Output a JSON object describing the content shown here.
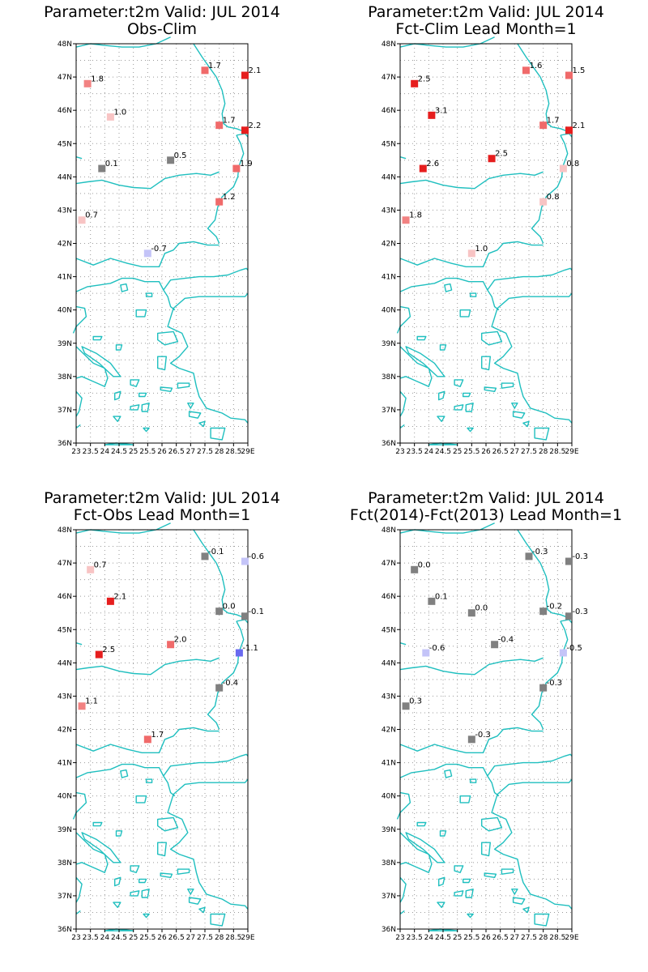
{
  "figure": {
    "panels": [
      {
        "id": "obs-clim",
        "title_line1": "Parameter:t2m Valid: JUL 2014",
        "title_line2": "Obs-Clim",
        "points": [
          {
            "lon": 23.4,
            "lat": 46.8,
            "value": "1.8",
            "color": "#f28282"
          },
          {
            "lon": 24.2,
            "lat": 45.8,
            "value": "1.0",
            "color": "#f8c4c4"
          },
          {
            "lon": 27.5,
            "lat": 47.2,
            "value": "1.7",
            "color": "#f06a6a"
          },
          {
            "lon": 28.9,
            "lat": 47.05,
            "value": "2.1",
            "color": "#e61e1e"
          },
          {
            "lon": 28.0,
            "lat": 45.55,
            "value": "1.7",
            "color": "#f06a6a"
          },
          {
            "lon": 28.9,
            "lat": 45.4,
            "value": "2.2",
            "color": "#e61e1e"
          },
          {
            "lon": 26.3,
            "lat": 44.5,
            "value": "0.5",
            "color": "#808080"
          },
          {
            "lon": 23.9,
            "lat": 44.25,
            "value": "0.1",
            "color": "#808080"
          },
          {
            "lon": 28.6,
            "lat": 44.25,
            "value": "1.9",
            "color": "#f06a6a"
          },
          {
            "lon": 28.0,
            "lat": 43.25,
            "value": "1.2",
            "color": "#f06a6a"
          },
          {
            "lon": 23.2,
            "lat": 42.7,
            "value": "0.7",
            "color": "#f8c4c4"
          },
          {
            "lon": 25.5,
            "lat": 41.7,
            "value": "-0.7",
            "color": "#c4c4f8"
          }
        ]
      },
      {
        "id": "fct-clim",
        "title_line1": "Parameter:t2m Valid: JUL 2014",
        "title_line2": "Fct-Clim Lead Month=1",
        "points": [
          {
            "lon": 23.5,
            "lat": 46.8,
            "value": "2.5",
            "color": "#e61e1e"
          },
          {
            "lon": 24.1,
            "lat": 45.85,
            "value": "3.1",
            "color": "#e61e1e"
          },
          {
            "lon": 27.4,
            "lat": 47.2,
            "value": "1.6",
            "color": "#f06a6a"
          },
          {
            "lon": 28.9,
            "lat": 47.05,
            "value": "1.5",
            "color": "#f06a6a"
          },
          {
            "lon": 28.0,
            "lat": 45.55,
            "value": "1.7",
            "color": "#f06a6a"
          },
          {
            "lon": 28.9,
            "lat": 45.4,
            "value": "2.1",
            "color": "#e61e1e"
          },
          {
            "lon": 26.2,
            "lat": 44.55,
            "value": "2.5",
            "color": "#e61e1e"
          },
          {
            "lon": 23.8,
            "lat": 44.25,
            "value": "2.6",
            "color": "#e61e1e"
          },
          {
            "lon": 28.7,
            "lat": 44.25,
            "value": "0.8",
            "color": "#f8c4c4"
          },
          {
            "lon": 28.0,
            "lat": 43.25,
            "value": "0.8",
            "color": "#f8c4c4"
          },
          {
            "lon": 23.2,
            "lat": 42.7,
            "value": "1.8",
            "color": "#f28282"
          },
          {
            "lon": 25.5,
            "lat": 41.7,
            "value": "1.0",
            "color": "#f8c4c4"
          }
        ]
      },
      {
        "id": "fct-obs",
        "title_line1": "Parameter:t2m Valid: JUL 2014",
        "title_line2": "Fct-Obs Lead Month=1",
        "points": [
          {
            "lon": 23.5,
            "lat": 46.8,
            "value": "0.7",
            "color": "#f8c4c4"
          },
          {
            "lon": 24.2,
            "lat": 45.85,
            "value": "2.1",
            "color": "#e61e1e"
          },
          {
            "lon": 27.5,
            "lat": 47.2,
            "value": "-0.1",
            "color": "#808080"
          },
          {
            "lon": 28.9,
            "lat": 47.05,
            "value": "-0.6",
            "color": "#c4c4f8"
          },
          {
            "lon": 28.0,
            "lat": 45.55,
            "value": "0.0",
            "color": "#808080"
          },
          {
            "lon": 28.9,
            "lat": 45.4,
            "value": "-0.1",
            "color": "#808080"
          },
          {
            "lon": 26.3,
            "lat": 44.55,
            "value": "2.0",
            "color": "#f06a6a"
          },
          {
            "lon": 23.8,
            "lat": 44.25,
            "value": "2.5",
            "color": "#e61e1e"
          },
          {
            "lon": 28.7,
            "lat": 44.3,
            "value": "-1.1",
            "color": "#6a6af0"
          },
          {
            "lon": 28.0,
            "lat": 43.25,
            "value": "-0.4",
            "color": "#808080"
          },
          {
            "lon": 23.2,
            "lat": 42.7,
            "value": "1.1",
            "color": "#f28282"
          },
          {
            "lon": 25.5,
            "lat": 41.7,
            "value": "1.7",
            "color": "#f06a6a"
          }
        ]
      },
      {
        "id": "fct-diff",
        "title_line1": "Parameter:t2m Valid: JUL 2014",
        "title_line2": "Fct(2014)-Fct(2013) Lead Month=1",
        "points": [
          {
            "lon": 23.5,
            "lat": 46.8,
            "value": "0.0",
            "color": "#808080"
          },
          {
            "lon": 24.1,
            "lat": 45.85,
            "value": "0.1",
            "color": "#808080"
          },
          {
            "lon": 27.5,
            "lat": 47.2,
            "value": "-0.3",
            "color": "#808080"
          },
          {
            "lon": 28.9,
            "lat": 47.05,
            "value": "-0.3",
            "color": "#808080"
          },
          {
            "lon": 25.5,
            "lat": 45.5,
            "value": "0.0",
            "color": "#808080"
          },
          {
            "lon": 28.0,
            "lat": 45.55,
            "value": "-0.2",
            "color": "#808080"
          },
          {
            "lon": 28.9,
            "lat": 45.4,
            "value": "-0.3",
            "color": "#808080"
          },
          {
            "lon": 26.3,
            "lat": 44.55,
            "value": "-0.4",
            "color": "#808080"
          },
          {
            "lon": 23.9,
            "lat": 44.3,
            "value": "-0.6",
            "color": "#c4c4f8"
          },
          {
            "lon": 28.7,
            "lat": 44.3,
            "value": "-0.5",
            "color": "#c4c4f8"
          },
          {
            "lon": 28.0,
            "lat": 43.25,
            "value": "-0.3",
            "color": "#808080"
          },
          {
            "lon": 23.2,
            "lat": 42.7,
            "value": "0.3",
            "color": "#808080"
          },
          {
            "lon": 25.5,
            "lat": 41.7,
            "value": "-0.3",
            "color": "#808080"
          }
        ]
      }
    ],
    "axes": {
      "lat_min": 36,
      "lat_max": 48,
      "lon_min": 23,
      "lon_max": 29,
      "lat_ticks": [
        "36N",
        "37N",
        "38N",
        "39N",
        "40N",
        "41N",
        "42N",
        "43N",
        "44N",
        "45N",
        "46N",
        "47N",
        "48N"
      ],
      "lon_ticks": [
        {
          "lon": 23,
          "label": "23"
        },
        {
          "lon": 23.5,
          "label": "23.5"
        },
        {
          "lon": 24,
          "label": "24"
        },
        {
          "lon": 24.5,
          "label": "24.5"
        },
        {
          "lon": 25,
          "label": "25"
        },
        {
          "lon": 25.5,
          "label": "25.5"
        },
        {
          "lon": 26,
          "label": "26"
        },
        {
          "lon": 26.5,
          "label": "26.5"
        },
        {
          "lon": 27,
          "label": "27"
        },
        {
          "lon": 27.5,
          "label": "27.5"
        },
        {
          "lon": 28,
          "label": "28"
        },
        {
          "lon": 28.5,
          "label": "28.5"
        },
        {
          "lon": 29,
          "label": "29E"
        }
      ]
    },
    "colors": {
      "coastline": "#1fbfbf",
      "grid": "#9a9a9a"
    }
  }
}
